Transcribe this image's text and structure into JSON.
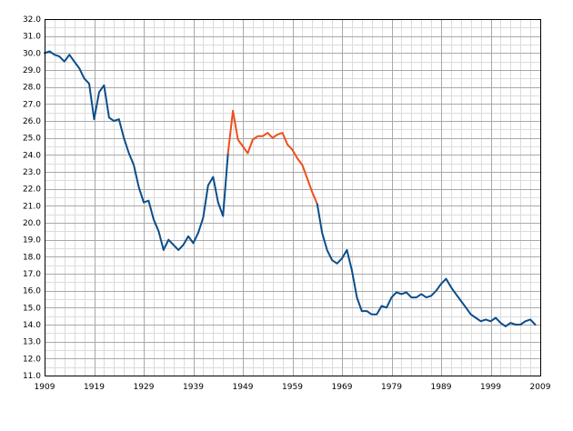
{
  "chart_data": {
    "type": "line",
    "title": "",
    "xlabel": "",
    "ylabel": "",
    "xlim": [
      1909,
      2009
    ],
    "ylim": [
      11,
      32
    ],
    "x_ticks": [
      1909,
      1919,
      1929,
      1939,
      1949,
      1959,
      1969,
      1979,
      1989,
      1999,
      2009
    ],
    "x_tick_labels": [
      "1909",
      "1919",
      "1929",
      "1939",
      "1949",
      "1959",
      "1969",
      "1979",
      "1989",
      "1999",
      "2009"
    ],
    "y_ticks": [
      11,
      12,
      13,
      14,
      15,
      16,
      17,
      18,
      19,
      20,
      21,
      22,
      23,
      24,
      25,
      26,
      27,
      28,
      29,
      30,
      31,
      32
    ],
    "y_tick_labels": [
      "11.0",
      "12.0",
      "13.0",
      "14.0",
      "15.0",
      "16.0",
      "17.0",
      "18.0",
      "19.0",
      "20.0",
      "21.0",
      "22.0",
      "23.0",
      "24.0",
      "25.0",
      "26.0",
      "27.0",
      "28.0",
      "29.0",
      "30.0",
      "31.0",
      "32.0"
    ],
    "grid": true,
    "legend": "none",
    "series": [
      {
        "color": "#0b4e8a",
        "x": [
          1909,
          1910,
          1911,
          1912,
          1913,
          1914,
          1915,
          1916,
          1917,
          1918,
          1919,
          1920,
          1921,
          1922,
          1923,
          1924,
          1925,
          1926,
          1927,
          1928,
          1929,
          1930,
          1931,
          1932,
          1933,
          1934,
          1935,
          1936,
          1937,
          1938,
          1939,
          1940,
          1941,
          1942,
          1943,
          1944,
          1945,
          1946
        ],
        "y": [
          30.0,
          30.1,
          29.9,
          29.8,
          29.5,
          29.9,
          29.5,
          29.1,
          28.5,
          28.2,
          26.1,
          27.7,
          28.1,
          26.2,
          26.0,
          26.1,
          25.0,
          24.1,
          23.4,
          22.1,
          21.2,
          21.3,
          20.2,
          19.5,
          18.4,
          19.0,
          18.7,
          18.4,
          18.7,
          19.2,
          18.8,
          19.4,
          20.3,
          22.2,
          22.7,
          21.2,
          20.4,
          24.1
        ]
      },
      {
        "color": "#f04e1c",
        "x": [
          1946,
          1947,
          1948,
          1949,
          1950,
          1951,
          1952,
          1953,
          1954,
          1955,
          1956,
          1957,
          1958,
          1959,
          1960,
          1961,
          1962,
          1963,
          1964
        ],
        "y": [
          24.1,
          26.6,
          24.9,
          24.5,
          24.1,
          24.9,
          25.1,
          25.1,
          25.3,
          25.0,
          25.2,
          25.3,
          24.6,
          24.3,
          23.8,
          23.4,
          22.6,
          21.8,
          21.1
        ]
      },
      {
        "color": "#0b4e8a",
        "x": [
          1964,
          1965,
          1966,
          1967,
          1968,
          1969,
          1970,
          1971,
          1972,
          1973,
          1974,
          1975,
          1976,
          1977,
          1978,
          1979,
          1980,
          1981,
          1982,
          1983,
          1984,
          1985,
          1986,
          1987,
          1988,
          1989,
          1990,
          1991,
          1992,
          1993,
          1994,
          1995,
          1996,
          1997,
          1998,
          1999,
          2000,
          2001,
          2002,
          2003,
          2004,
          2005,
          2006,
          2007,
          2008
        ],
        "y": [
          21.1,
          19.4,
          18.4,
          17.8,
          17.6,
          17.9,
          18.4,
          17.2,
          15.6,
          14.8,
          14.8,
          14.6,
          14.6,
          15.1,
          15.0,
          15.6,
          15.9,
          15.8,
          15.9,
          15.6,
          15.6,
          15.8,
          15.6,
          15.7,
          16.0,
          16.4,
          16.7,
          16.2,
          15.8,
          15.4,
          15.0,
          14.6,
          14.4,
          14.2,
          14.3,
          14.2,
          14.4,
          14.1,
          13.9,
          14.1,
          14.0,
          14.0,
          14.2,
          14.3,
          14.0
        ]
      }
    ]
  }
}
